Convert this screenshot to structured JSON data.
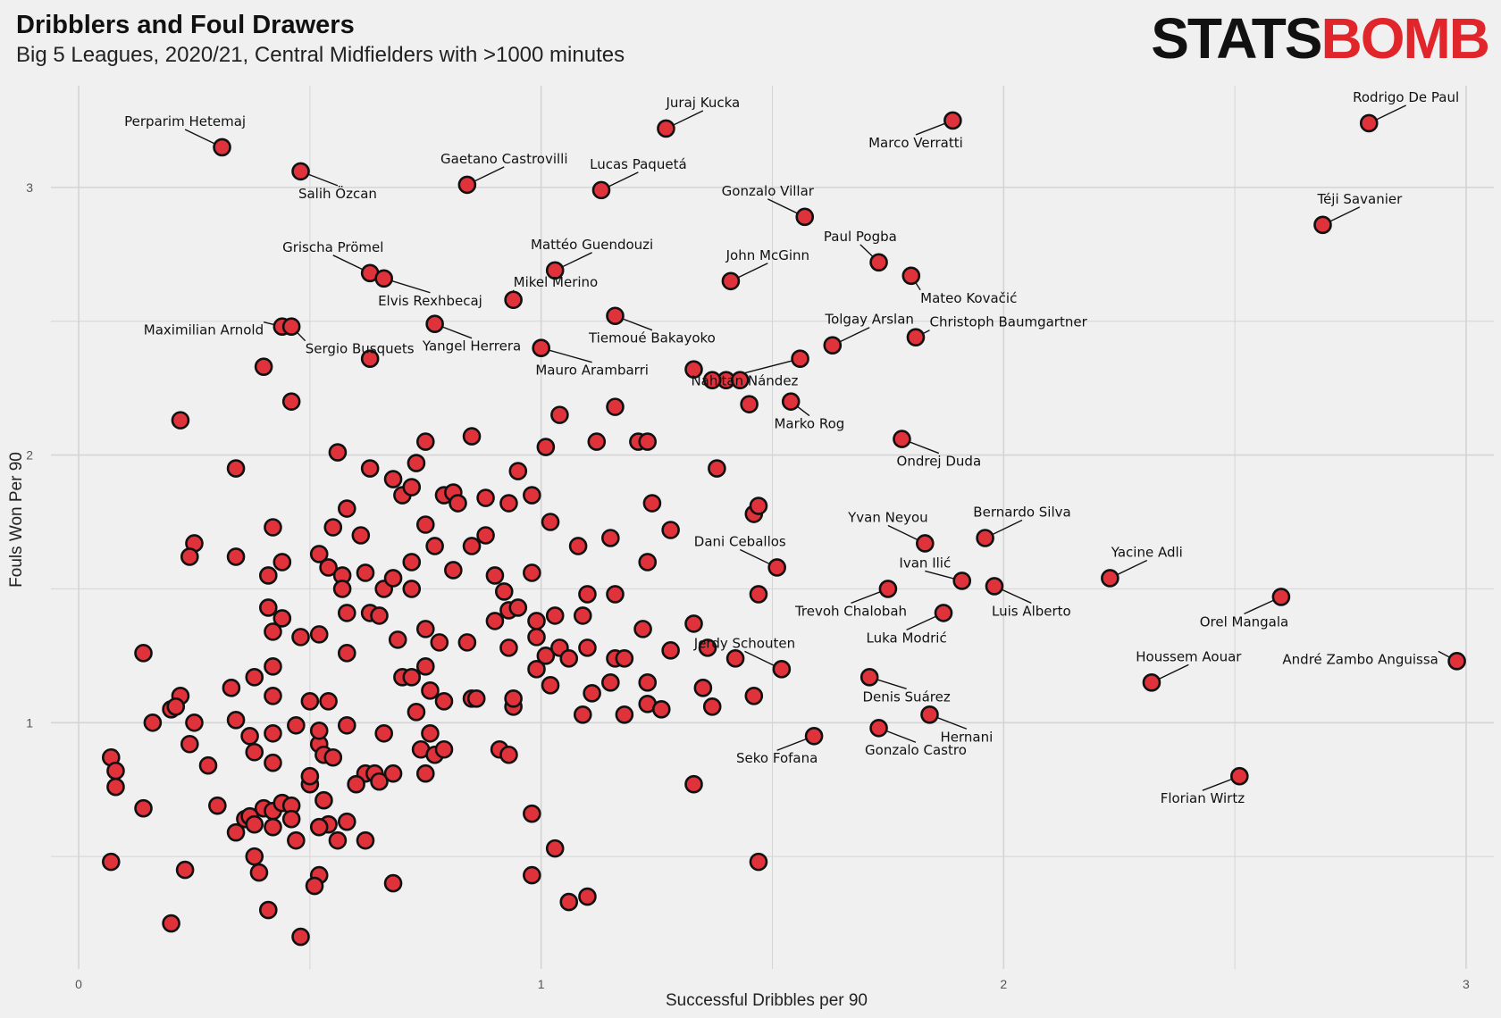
{
  "header": {
    "title": "Dribblers and Foul Drawers",
    "subtitle": "Big 5 Leagues, 2020/21, Central Midfielders with >1000 minutes",
    "logo_part1": "STATS",
    "logo_part2": "BOMB"
  },
  "colors": {
    "point_fill": "#e0323a",
    "point_stroke": "#111111",
    "grid": "#d4d4d4",
    "logo_red": "#e0262b"
  },
  "chart_data": {
    "type": "scatter",
    "title": "Dribblers and Foul Drawers",
    "subtitle": "Big 5 Leagues, 2020/21, Central Midfielders with >1000 minutes",
    "xlabel": "Successful Dribbles per 90",
    "ylabel": "Fouls Won Per 90",
    "xlim": [
      -0.06,
      3.06
    ],
    "ylim": [
      0.08,
      3.38
    ],
    "xticks": [
      0,
      1,
      2,
      3
    ],
    "yticks": [
      1,
      2,
      3
    ],
    "grid": true,
    "labeled_points": [
      {
        "name": "Perparim Hetemaj",
        "x": 0.31,
        "y": 3.15,
        "lx": 0.23,
        "ly": 3.23,
        "ha": "middle"
      },
      {
        "name": "Salih Özcan",
        "x": 0.48,
        "y": 3.06,
        "lx": 0.56,
        "ly": 2.96,
        "ha": "middle"
      },
      {
        "name": "Juraj Kucka",
        "x": 1.27,
        "y": 3.22,
        "lx": 1.35,
        "ly": 3.3,
        "ha": "middle"
      },
      {
        "name": "Marco Verratti",
        "x": 1.89,
        "y": 3.25,
        "lx": 1.81,
        "ly": 3.15,
        "ha": "middle"
      },
      {
        "name": "Rodrigo De Paul",
        "x": 2.79,
        "y": 3.24,
        "lx": 2.87,
        "ly": 3.32,
        "ha": "middle"
      },
      {
        "name": "Gaetano Castrovilli",
        "x": 0.84,
        "y": 3.01,
        "lx": 0.92,
        "ly": 3.09,
        "ha": "middle"
      },
      {
        "name": "Lucas Paquetá",
        "x": 1.13,
        "y": 2.99,
        "lx": 1.21,
        "ly": 3.07,
        "ha": "middle"
      },
      {
        "name": "Gonzalo Villar",
        "x": 1.57,
        "y": 2.89,
        "lx": 1.49,
        "ly": 2.97,
        "ha": "middle"
      },
      {
        "name": "Téji Savanier",
        "x": 2.69,
        "y": 2.86,
        "lx": 2.77,
        "ly": 2.94,
        "ha": "middle"
      },
      {
        "name": "Grischa Prömel",
        "x": 0.63,
        "y": 2.68,
        "lx": 0.55,
        "ly": 2.76,
        "ha": "middle"
      },
      {
        "name": "Elvis Rexhbecaj",
        "x": 0.66,
        "y": 2.66,
        "lx": 0.76,
        "ly": 2.56,
        "ha": "middle"
      },
      {
        "name": "Mattéo Guendouzi",
        "x": 1.03,
        "y": 2.69,
        "lx": 1.11,
        "ly": 2.77,
        "ha": "middle"
      },
      {
        "name": "John McGinn",
        "x": 1.41,
        "y": 2.65,
        "lx": 1.49,
        "ly": 2.73,
        "ha": "middle"
      },
      {
        "name": "Paul Pogba",
        "x": 1.73,
        "y": 2.72,
        "lx": 1.69,
        "ly": 2.8,
        "ha": "middle"
      },
      {
        "name": "Mateo Kovačić",
        "x": 1.8,
        "y": 2.67,
        "lx": 1.82,
        "ly": 2.57,
        "ha": "start"
      },
      {
        "name": "Mikel Merino",
        "x": 0.94,
        "y": 2.58,
        "lx": 0.94,
        "ly": 2.63,
        "ha": "start"
      },
      {
        "name": "Tiemoué Bakayoko",
        "x": 1.16,
        "y": 2.52,
        "lx": 1.24,
        "ly": 2.42,
        "ha": "middle"
      },
      {
        "name": "Maximilian Arnold",
        "x": 0.44,
        "y": 2.48,
        "lx": 0.4,
        "ly": 2.45,
        "ha": "end"
      },
      {
        "name": "Sergio Busquets",
        "x": 0.46,
        "y": 2.48,
        "lx": 0.49,
        "ly": 2.38,
        "ha": "start"
      },
      {
        "name": "Yangel Herrera",
        "x": 0.77,
        "y": 2.49,
        "lx": 0.85,
        "ly": 2.39,
        "ha": "middle"
      },
      {
        "name": "Tolgay Arslan",
        "x": 1.63,
        "y": 2.41,
        "lx": 1.71,
        "ly": 2.49,
        "ha": "middle"
      },
      {
        "name": "Christoph Baumgartner",
        "x": 1.81,
        "y": 2.44,
        "lx": 1.84,
        "ly": 2.48,
        "ha": "start"
      },
      {
        "name": "Mauro Arambarri",
        "x": 1.0,
        "y": 2.4,
        "lx": 1.11,
        "ly": 2.3,
        "ha": "middle"
      },
      {
        "name": "Nahitan Nández",
        "x": 1.56,
        "y": 2.36,
        "lx": 1.44,
        "ly": 2.26,
        "ha": "middle"
      },
      {
        "name": "Marko Rog",
        "x": 1.54,
        "y": 2.2,
        "lx": 1.58,
        "ly": 2.1,
        "ha": "middle"
      },
      {
        "name": "Ondrej Duda",
        "x": 1.78,
        "y": 2.06,
        "lx": 1.86,
        "ly": 1.96,
        "ha": "middle"
      },
      {
        "name": "Yvan Neyou",
        "x": 1.83,
        "y": 1.67,
        "lx": 1.75,
        "ly": 1.75,
        "ha": "middle"
      },
      {
        "name": "Bernardo Silva",
        "x": 1.96,
        "y": 1.69,
        "lx": 2.04,
        "ly": 1.77,
        "ha": "middle"
      },
      {
        "name": "Dani Ceballos",
        "x": 1.51,
        "y": 1.58,
        "lx": 1.43,
        "ly": 1.66,
        "ha": "middle"
      },
      {
        "name": "Yacine Adli",
        "x": 2.23,
        "y": 1.54,
        "lx": 2.31,
        "ly": 1.62,
        "ha": "middle"
      },
      {
        "name": "Ivan Ilić",
        "x": 1.91,
        "y": 1.53,
        "lx": 1.83,
        "ly": 1.58,
        "ha": "middle"
      },
      {
        "name": "Trevoh Chalobah",
        "x": 1.75,
        "y": 1.5,
        "lx": 1.67,
        "ly": 1.4,
        "ha": "middle"
      },
      {
        "name": "Luis Alberto",
        "x": 1.98,
        "y": 1.51,
        "lx": 2.06,
        "ly": 1.4,
        "ha": "middle"
      },
      {
        "name": "Orel Mangala",
        "x": 2.6,
        "y": 1.47,
        "lx": 2.52,
        "ly": 1.36,
        "ha": "middle"
      },
      {
        "name": "Luka Modrić",
        "x": 1.87,
        "y": 1.41,
        "lx": 1.79,
        "ly": 1.3,
        "ha": "middle"
      },
      {
        "name": "Jerdy Schouten",
        "x": 1.52,
        "y": 1.2,
        "lx": 1.44,
        "ly": 1.28,
        "ha": "middle"
      },
      {
        "name": "Houssem Aouar",
        "x": 2.32,
        "y": 1.15,
        "lx": 2.4,
        "ly": 1.23,
        "ha": "middle"
      },
      {
        "name": "André Zambo Anguissa",
        "x": 2.98,
        "y": 1.23,
        "lx": 2.94,
        "ly": 1.22,
        "ha": "end"
      },
      {
        "name": "Denis Suárez",
        "x": 1.71,
        "y": 1.17,
        "lx": 1.79,
        "ly": 1.08,
        "ha": "middle"
      },
      {
        "name": "Hernani",
        "x": 1.84,
        "y": 1.03,
        "lx": 1.92,
        "ly": 0.93,
        "ha": "middle"
      },
      {
        "name": "Seko Fofana",
        "x": 1.59,
        "y": 0.95,
        "lx": 1.51,
        "ly": 0.85,
        "ha": "middle"
      },
      {
        "name": "Gonzalo Castro",
        "x": 1.73,
        "y": 0.98,
        "lx": 1.81,
        "ly": 0.88,
        "ha": "middle"
      },
      {
        "name": "Florian Wirtz",
        "x": 2.51,
        "y": 0.8,
        "lx": 2.43,
        "ly": 0.7,
        "ha": "middle"
      }
    ],
    "points": [
      [
        0.22,
        2.13
      ],
      [
        0.34,
        1.95
      ],
      [
        0.4,
        2.33
      ],
      [
        0.46,
        2.2
      ],
      [
        0.56,
        2.01
      ],
      [
        0.63,
        2.36
      ],
      [
        0.73,
        1.97
      ],
      [
        0.75,
        2.05
      ],
      [
        0.79,
        1.85
      ],
      [
        0.81,
        1.86
      ],
      [
        0.85,
        2.07
      ],
      [
        0.95,
        1.94
      ],
      [
        0.98,
        1.85
      ],
      [
        1.01,
        2.03
      ],
      [
        1.04,
        2.15
      ],
      [
        1.12,
        2.05
      ],
      [
        1.16,
        2.18
      ],
      [
        1.21,
        2.05
      ],
      [
        1.23,
        2.05
      ],
      [
        1.38,
        1.95
      ],
      [
        1.4,
        2.28
      ],
      [
        1.43,
        2.28
      ],
      [
        1.45,
        2.19
      ],
      [
        1.46,
        1.78
      ],
      [
        1.47,
        1.81
      ],
      [
        1.33,
        2.32
      ],
      [
        1.37,
        2.28
      ],
      [
        0.25,
        1.67
      ],
      [
        0.24,
        1.62
      ],
      [
        0.34,
        1.62
      ],
      [
        0.42,
        1.73
      ],
      [
        0.44,
        1.6
      ],
      [
        0.41,
        1.55
      ],
      [
        0.52,
        1.63
      ],
      [
        0.55,
        1.73
      ],
      [
        0.58,
        1.8
      ],
      [
        0.61,
        1.7
      ],
      [
        0.63,
        1.95
      ],
      [
        0.68,
        1.91
      ],
      [
        0.7,
        1.85
      ],
      [
        0.72,
        1.88
      ],
      [
        0.75,
        1.74
      ],
      [
        0.82,
        1.82
      ],
      [
        0.85,
        1.66
      ],
      [
        0.88,
        1.84
      ],
      [
        0.88,
        1.7
      ],
      [
        0.93,
        1.82
      ],
      [
        0.98,
        1.56
      ],
      [
        1.02,
        1.75
      ],
      [
        1.08,
        1.66
      ],
      [
        1.15,
        1.69
      ],
      [
        1.24,
        1.82
      ],
      [
        1.28,
        1.72
      ],
      [
        1.23,
        1.6
      ],
      [
        1.1,
        1.48
      ],
      [
        1.16,
        1.48
      ],
      [
        0.54,
        1.58
      ],
      [
        0.57,
        1.55
      ],
      [
        0.57,
        1.5
      ],
      [
        0.62,
        1.56
      ],
      [
        0.66,
        1.5
      ],
      [
        0.68,
        1.54
      ],
      [
        0.72,
        1.6
      ],
      [
        0.72,
        1.5
      ],
      [
        0.77,
        1.66
      ],
      [
        0.81,
        1.57
      ],
      [
        0.9,
        1.55
      ],
      [
        0.92,
        1.49
      ],
      [
        0.93,
        1.42
      ],
      [
        0.95,
        1.43
      ],
      [
        0.9,
        1.38
      ],
      [
        0.99,
        1.38
      ],
      [
        1.03,
        1.4
      ],
      [
        1.09,
        1.4
      ],
      [
        1.22,
        1.35
      ],
      [
        1.33,
        1.37
      ],
      [
        0.41,
        1.43
      ],
      [
        0.44,
        1.39
      ],
      [
        0.42,
        1.34
      ],
      [
        0.48,
        1.32
      ],
      [
        0.52,
        1.33
      ],
      [
        0.58,
        1.41
      ],
      [
        0.63,
        1.41
      ],
      [
        0.65,
        1.4
      ],
      [
        0.69,
        1.31
      ],
      [
        0.75,
        1.35
      ],
      [
        0.78,
        1.3
      ],
      [
        0.84,
        1.3
      ],
      [
        0.93,
        1.28
      ],
      [
        0.99,
        1.32
      ],
      [
        1.01,
        1.25
      ],
      [
        1.04,
        1.28
      ],
      [
        1.06,
        1.24
      ],
      [
        1.1,
        1.28
      ],
      [
        1.16,
        1.24
      ],
      [
        1.18,
        1.24
      ],
      [
        1.28,
        1.27
      ],
      [
        1.36,
        1.28
      ],
      [
        1.42,
        1.24
      ],
      [
        1.47,
        1.48
      ],
      [
        0.14,
        1.26
      ],
      [
        0.58,
        1.26
      ],
      [
        0.42,
        1.21
      ],
      [
        0.38,
        1.17
      ],
      [
        0.7,
        1.17
      ],
      [
        0.72,
        1.17
      ],
      [
        0.75,
        1.21
      ],
      [
        0.76,
        1.12
      ],
      [
        0.79,
        1.08
      ],
      [
        0.85,
        1.09
      ],
      [
        0.86,
        1.09
      ],
      [
        0.94,
        1.06
      ],
      [
        0.94,
        1.09
      ],
      [
        0.99,
        1.2
      ],
      [
        1.02,
        1.14
      ],
      [
        1.11,
        1.11
      ],
      [
        1.15,
        1.15
      ],
      [
        1.23,
        1.15
      ],
      [
        1.23,
        1.07
      ],
      [
        1.26,
        1.05
      ],
      [
        1.35,
        1.13
      ],
      [
        1.37,
        1.06
      ],
      [
        1.46,
        1.1
      ],
      [
        1.18,
        1.03
      ],
      [
        1.09,
        1.03
      ],
      [
        0.22,
        1.1
      ],
      [
        0.2,
        1.05
      ],
      [
        0.21,
        1.06
      ],
      [
        0.33,
        1.13
      ],
      [
        0.42,
        1.1
      ],
      [
        0.5,
        1.08
      ],
      [
        0.54,
        1.08
      ],
      [
        0.16,
        1.0
      ],
      [
        0.25,
        1.0
      ],
      [
        0.34,
        1.01
      ],
      [
        0.37,
        0.95
      ],
      [
        0.47,
        0.99
      ],
      [
        0.52,
        0.92
      ],
      [
        0.52,
        0.97
      ],
      [
        0.58,
        0.99
      ],
      [
        0.66,
        0.96
      ],
      [
        0.73,
        1.04
      ],
      [
        0.76,
        0.96
      ],
      [
        0.24,
        0.92
      ],
      [
        0.42,
        0.96
      ],
      [
        0.38,
        0.89
      ],
      [
        0.53,
        0.88
      ],
      [
        0.55,
        0.87
      ],
      [
        0.62,
        0.81
      ],
      [
        0.64,
        0.81
      ],
      [
        0.65,
        0.78
      ],
      [
        0.68,
        0.81
      ],
      [
        0.74,
        0.9
      ],
      [
        0.77,
        0.88
      ],
      [
        0.79,
        0.9
      ],
      [
        0.75,
        0.81
      ],
      [
        0.28,
        0.84
      ],
      [
        0.42,
        0.85
      ],
      [
        0.5,
        0.77
      ],
      [
        0.5,
        0.8
      ],
      [
        0.53,
        0.71
      ],
      [
        0.6,
        0.77
      ],
      [
        0.91,
        0.9
      ],
      [
        0.93,
        0.88
      ],
      [
        0.07,
        0.87
      ],
      [
        0.08,
        0.82
      ],
      [
        0.08,
        0.76
      ],
      [
        0.14,
        0.68
      ],
      [
        0.3,
        0.69
      ],
      [
        0.36,
        0.64
      ],
      [
        0.4,
        0.68
      ],
      [
        0.42,
        0.67
      ],
      [
        0.44,
        0.7
      ],
      [
        0.46,
        0.69
      ],
      [
        0.46,
        0.64
      ],
      [
        0.37,
        0.65
      ],
      [
        0.38,
        0.62
      ],
      [
        0.42,
        0.61
      ],
      [
        0.54,
        0.62
      ],
      [
        0.52,
        0.61
      ],
      [
        0.58,
        0.63
      ],
      [
        0.34,
        0.59
      ],
      [
        0.47,
        0.56
      ],
      [
        0.56,
        0.56
      ],
      [
        0.62,
        0.56
      ],
      [
        0.98,
        0.66
      ],
      [
        1.03,
        0.53
      ],
      [
        1.33,
        0.77
      ],
      [
        1.47,
        0.48
      ],
      [
        0.07,
        0.48
      ],
      [
        0.23,
        0.45
      ],
      [
        0.38,
        0.5
      ],
      [
        0.39,
        0.44
      ],
      [
        0.52,
        0.43
      ],
      [
        0.51,
        0.39
      ],
      [
        0.68,
        0.4
      ],
      [
        0.98,
        0.43
      ],
      [
        1.06,
        0.33
      ],
      [
        1.1,
        0.35
      ],
      [
        0.2,
        0.25
      ],
      [
        0.41,
        0.3
      ],
      [
        0.48,
        0.2
      ]
    ]
  }
}
